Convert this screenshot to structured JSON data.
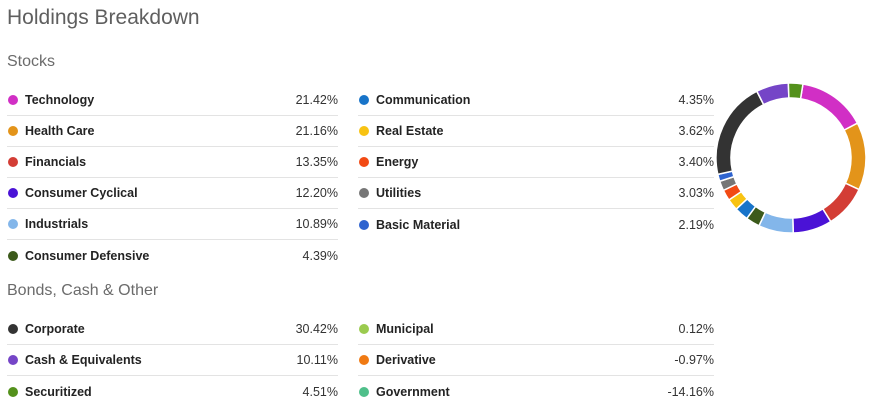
{
  "title": "Holdings Breakdown",
  "stocks": {
    "section_title": "Stocks",
    "left": [
      {
        "label": "Technology",
        "value": "21.42%",
        "color": "#d12fc5"
      },
      {
        "label": "Health Care",
        "value": "21.16%",
        "color": "#e3941a"
      },
      {
        "label": "Financials",
        "value": "13.35%",
        "color": "#d33d35"
      },
      {
        "label": "Consumer Cyclical",
        "value": "12.20%",
        "color": "#4a12d6"
      },
      {
        "label": "Industrials",
        "value": "10.89%",
        "color": "#83b6ea"
      },
      {
        "label": "Consumer Defensive",
        "value": "4.39%",
        "color": "#3c5a1b"
      }
    ],
    "right": [
      {
        "label": "Communication",
        "value": "4.35%",
        "color": "#1874c9"
      },
      {
        "label": "Real Estate",
        "value": "3.62%",
        "color": "#f8c313"
      },
      {
        "label": "Energy",
        "value": "3.40%",
        "color": "#f24a14"
      },
      {
        "label": "Utilities",
        "value": "3.03%",
        "color": "#767676"
      },
      {
        "label": "Basic Material",
        "value": "2.19%",
        "color": "#2e63cf"
      }
    ]
  },
  "bonds": {
    "section_title": "Bonds, Cash & Other",
    "left": [
      {
        "label": "Corporate",
        "value": "30.42%",
        "color": "#333333"
      },
      {
        "label": "Cash & Equivalents",
        "value": "10.11%",
        "color": "#7545c7"
      },
      {
        "label": "Securitized",
        "value": "4.51%",
        "color": "#54911c"
      }
    ],
    "right": [
      {
        "label": "Municipal",
        "value": "0.12%",
        "color": "#9bcb4f"
      },
      {
        "label": "Derivative",
        "value": "-0.97%",
        "color": "#f07a13"
      },
      {
        "label": "Government",
        "value": "-14.16%",
        "color": "#4fbf8a"
      }
    ]
  },
  "donut": {
    "segments": [
      {
        "name": "Technology",
        "value": 21.42,
        "color": "#d12fc5"
      },
      {
        "name": "Health Care",
        "value": 21.16,
        "color": "#e3941a"
      },
      {
        "name": "Financials",
        "value": 13.35,
        "color": "#d33d35"
      },
      {
        "name": "Consumer Cyclical",
        "value": 12.2,
        "color": "#4a12d6"
      },
      {
        "name": "Industrials",
        "value": 10.89,
        "color": "#83b6ea"
      },
      {
        "name": "Consumer Defensive",
        "value": 4.39,
        "color": "#3c5a1b"
      },
      {
        "name": "Communication",
        "value": 4.35,
        "color": "#1874c9"
      },
      {
        "name": "Real Estate",
        "value": 3.62,
        "color": "#f8c313"
      },
      {
        "name": "Energy",
        "value": 3.4,
        "color": "#f24a14"
      },
      {
        "name": "Utilities",
        "value": 3.03,
        "color": "#767676"
      },
      {
        "name": "Basic Material",
        "value": 2.19,
        "color": "#2e63cf"
      },
      {
        "name": "Corporate",
        "value": 30.42,
        "color": "#333333"
      },
      {
        "name": "Cash & Equivalents",
        "value": 10.11,
        "color": "#7545c7"
      },
      {
        "name": "Securitized",
        "value": 4.51,
        "color": "#54911c"
      }
    ]
  }
}
